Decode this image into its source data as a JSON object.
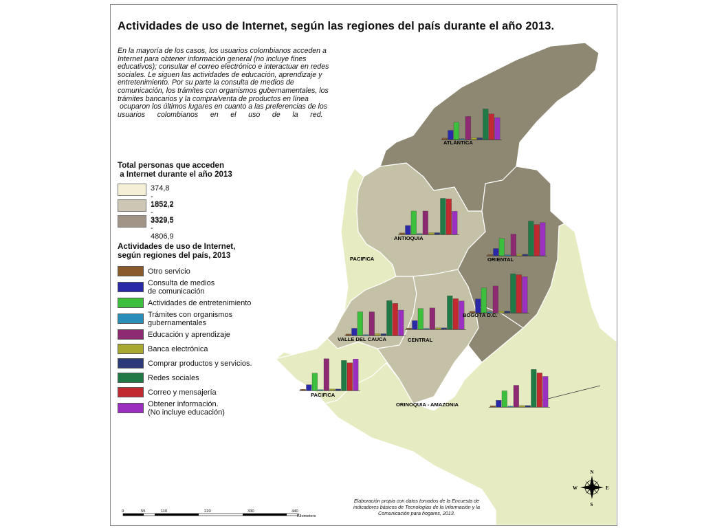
{
  "title": "Actividades de uso de Internet, según las regiones del país durante el año 2013.",
  "intro_lines": [
    "En la mayoría de los casos, los usuarios colombianos acceden a",
    "Internet para obtener información general (no incluye fines",
    "educativos); consultar el correo electrónico e interactuar en redes",
    "sociales. Le siguen las actividades de educación, aprendizaje y",
    "entretenimiento. Por su parte la consulta de medios de",
    "comunicación, los trámites con organismos gubernamentales, los",
    "trámites bancarios y la compra/venta de productos en línea",
    " ocuparon los últimos lugares en cuanto a las preferencias de los",
    "usuarios      colombianos      en      el      uso      de      la      red."
  ],
  "population_legend": {
    "title_lines": [
      "Total personas que acceden",
      " a Internet durante el año 2013"
    ],
    "items": [
      {
        "label": "374,8 - 1852,2",
        "color": "#f3f0d6"
      },
      {
        "label": "1852,2 - 3329,5",
        "color": "#cdc6b4"
      },
      {
        "label": "3329,5 - 4806,9",
        "color": "#a29587"
      }
    ]
  },
  "activity_legend": {
    "title_lines": [
      "Actividades de uso de Internet,",
      "según regiones del país, 2013"
    ],
    "items": [
      {
        "lines": [
          "Otro servicio"
        ],
        "color": "#8b5a2b"
      },
      {
        "lines": [
          "Consulta de medios",
          "de comunicación"
        ],
        "color": "#2a2aa8"
      },
      {
        "lines": [
          "Actividades de entretenimiento"
        ],
        "color": "#3cbf3c"
      },
      {
        "lines": [
          "Trámites con organismos",
          "gubernamentales"
        ],
        "color": "#2a8fb8"
      },
      {
        "lines": [
          "Educación y aprendizaje"
        ],
        "color": "#8e2a72"
      },
      {
        "lines": [
          "Banca electrónica"
        ],
        "color": "#a8a830"
      },
      {
        "lines": [
          "Comprar productos y servicios."
        ],
        "color": "#2c3a7a"
      },
      {
        "lines": [
          "Redes sociales"
        ],
        "color": "#1f7a45"
      },
      {
        "lines": [
          "Correo y mensajería"
        ],
        "color": "#c02a30"
      },
      {
        "lines": [
          "Obtener información.",
          "(No incluye educación)"
        ],
        "color": "#9a2fc0"
      }
    ]
  },
  "map_colors": {
    "low": "#e6ebc2",
    "mid": "#c5c1a6",
    "high": "#8e8873",
    "border": "#ffffff"
  },
  "regions": [
    {
      "name": "ATLÁNTICA",
      "values": [
        0.5,
        3.2,
        6.0,
        0.3,
        8.0,
        0.6,
        0.6,
        10.6,
        8.9,
        7.6
      ]
    },
    {
      "name": "ANTIOQUIA",
      "values": [
        0.5,
        3.1,
        8.1,
        0.3,
        8.1,
        0.6,
        0.6,
        12.5,
        12.3,
        8.0
      ]
    },
    {
      "name": "ORIENTAL",
      "values": [
        0.4,
        2.5,
        6.0,
        0.3,
        7.5,
        0.5,
        0.5,
        12.0,
        10.8,
        11.5
      ]
    },
    {
      "name": "VALLE DEL CAUCA",
      "values": [
        0.5,
        2.5,
        8.2,
        0.3,
        8.2,
        0.6,
        0.6,
        12.1,
        11.1,
        8.8
      ]
    },
    {
      "name": "CENTRAL",
      "values": [
        0.4,
        3.0,
        7.2,
        0.3,
        7.4,
        0.5,
        0.5,
        11.6,
        10.6,
        9.8
      ]
    },
    {
      "name": "BOGOTÁ D.C.",
      "values": [
        0.5,
        4.8,
        8.6,
        0.3,
        9.3,
        0.6,
        0.6,
        13.5,
        13.2,
        12.5
      ]
    },
    {
      "name": "PACIFICA",
      "values": [
        0.4,
        2.0,
        6.0,
        0.3,
        11.0,
        0.5,
        0.5,
        10.4,
        9.6,
        10.9
      ]
    },
    {
      "name": "ORINOQUIA - AMAZONIA",
      "values": [
        0.4,
        2.3,
        5.6,
        0.3,
        7.5,
        0.5,
        0.5,
        13.0,
        11.8,
        10.6
      ]
    }
  ],
  "pacifica_label": "PACIFICA",
  "scale_bar": {
    "ticks": [
      "0",
      "55",
      "110",
      "220",
      "330",
      "440"
    ],
    "unit": "Kilometers"
  },
  "compass": {
    "n": "N",
    "s": "S",
    "e": "E",
    "w": "W"
  },
  "credits_lines": [
    "Elaboración propia con datos tomados de la Encuesta de",
    "indicadores básicos de Tecnologías de la Información y la",
    "Comunicación para hogares, 2013."
  ]
}
